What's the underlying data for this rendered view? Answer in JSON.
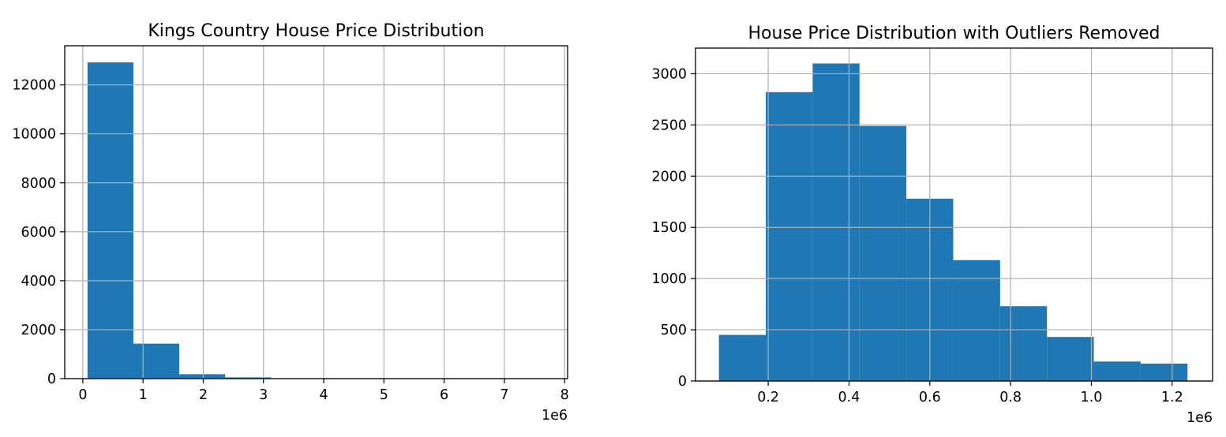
{
  "chart_data": [
    {
      "type": "bar",
      "title": "Kings Country House Price Distribution",
      "xlabel": "",
      "ylabel": "",
      "x_offset_label": "1e6",
      "xlim": [
        -0.3,
        8.05
      ],
      "ylim": [
        0,
        13600
      ],
      "xticks": [
        0,
        1,
        2,
        3,
        4,
        5,
        6,
        7,
        8
      ],
      "xtick_labels": [
        "0",
        "1",
        "2",
        "3",
        "4",
        "5",
        "6",
        "7",
        "8"
      ],
      "yticks": [
        0,
        2000,
        4000,
        6000,
        8000,
        10000,
        12000
      ],
      "ytick_labels": [
        "0",
        "2000",
        "4000",
        "6000",
        "8000",
        "10000",
        "12000"
      ],
      "bin_edges": [
        0.078,
        0.84,
        1.602,
        2.364,
        3.126,
        3.888,
        4.65,
        5.412,
        6.174,
        6.936,
        7.7
      ],
      "values": [
        12920,
        1430,
        180,
        50,
        12,
        5,
        2,
        1,
        1,
        1
      ],
      "grid": true,
      "color": "#1f77b4"
    },
    {
      "type": "bar",
      "title": "House Price Distribution with Outliers Removed",
      "xlabel": "",
      "ylabel": "",
      "x_offset_label": "1e6",
      "xlim": [
        0.02,
        1.3
      ],
      "ylim": [
        0,
        3250
      ],
      "xticks": [
        0.2,
        0.4,
        0.6,
        0.8,
        1.0,
        1.2
      ],
      "xtick_labels": [
        "0.2",
        "0.4",
        "0.6",
        "0.8",
        "1.0",
        "1.2"
      ],
      "yticks": [
        0,
        500,
        1000,
        1500,
        2000,
        2500,
        3000
      ],
      "ytick_labels": [
        "0",
        "500",
        "1000",
        "1500",
        "2000",
        "2500",
        "3000"
      ],
      "bin_edges": [
        0.078,
        0.194,
        0.31,
        0.426,
        0.542,
        0.658,
        0.774,
        0.89,
        1.006,
        1.122,
        1.238
      ],
      "values": [
        450,
        2820,
        3100,
        2490,
        1780,
        1180,
        730,
        430,
        190,
        170
      ],
      "grid": true,
      "color": "#1f77b4"
    }
  ]
}
